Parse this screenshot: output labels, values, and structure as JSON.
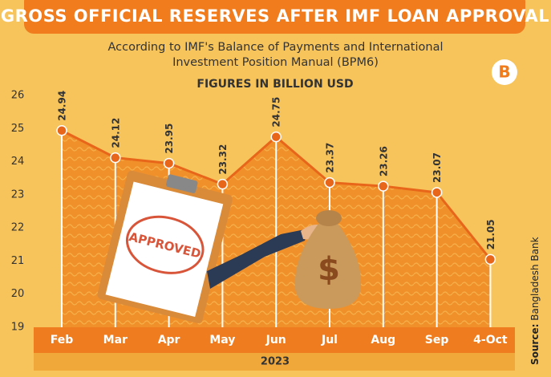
{
  "chart_data": {
    "type": "area",
    "title": "GROSS OFFICIAL RESERVES AFTER IMF LOAN APPROVAL",
    "subtitle": "According to IMF's Balance of Payments and International Investment Position Manual (BPM6)",
    "unit_label": "FIGURES IN BILLION USD",
    "x_label": "2023",
    "source_label": "Source:",
    "source": "Bangladesh Bank",
    "logo": "B",
    "illustration_texts": [
      "APPROVED",
      "$"
    ],
    "categories": [
      "Feb",
      "Mar",
      "Apr",
      "May",
      "Jun",
      "Jul",
      "Aug",
      "Sep",
      "4-Oct"
    ],
    "values": [
      24.94,
      24.12,
      23.95,
      23.32,
      24.75,
      23.37,
      23.26,
      23.07,
      21.05
    ],
    "color": "#e8661a",
    "ylim": [
      19,
      26
    ],
    "yticks": [
      19,
      20,
      21,
      22,
      23,
      24,
      25,
      26
    ]
  }
}
